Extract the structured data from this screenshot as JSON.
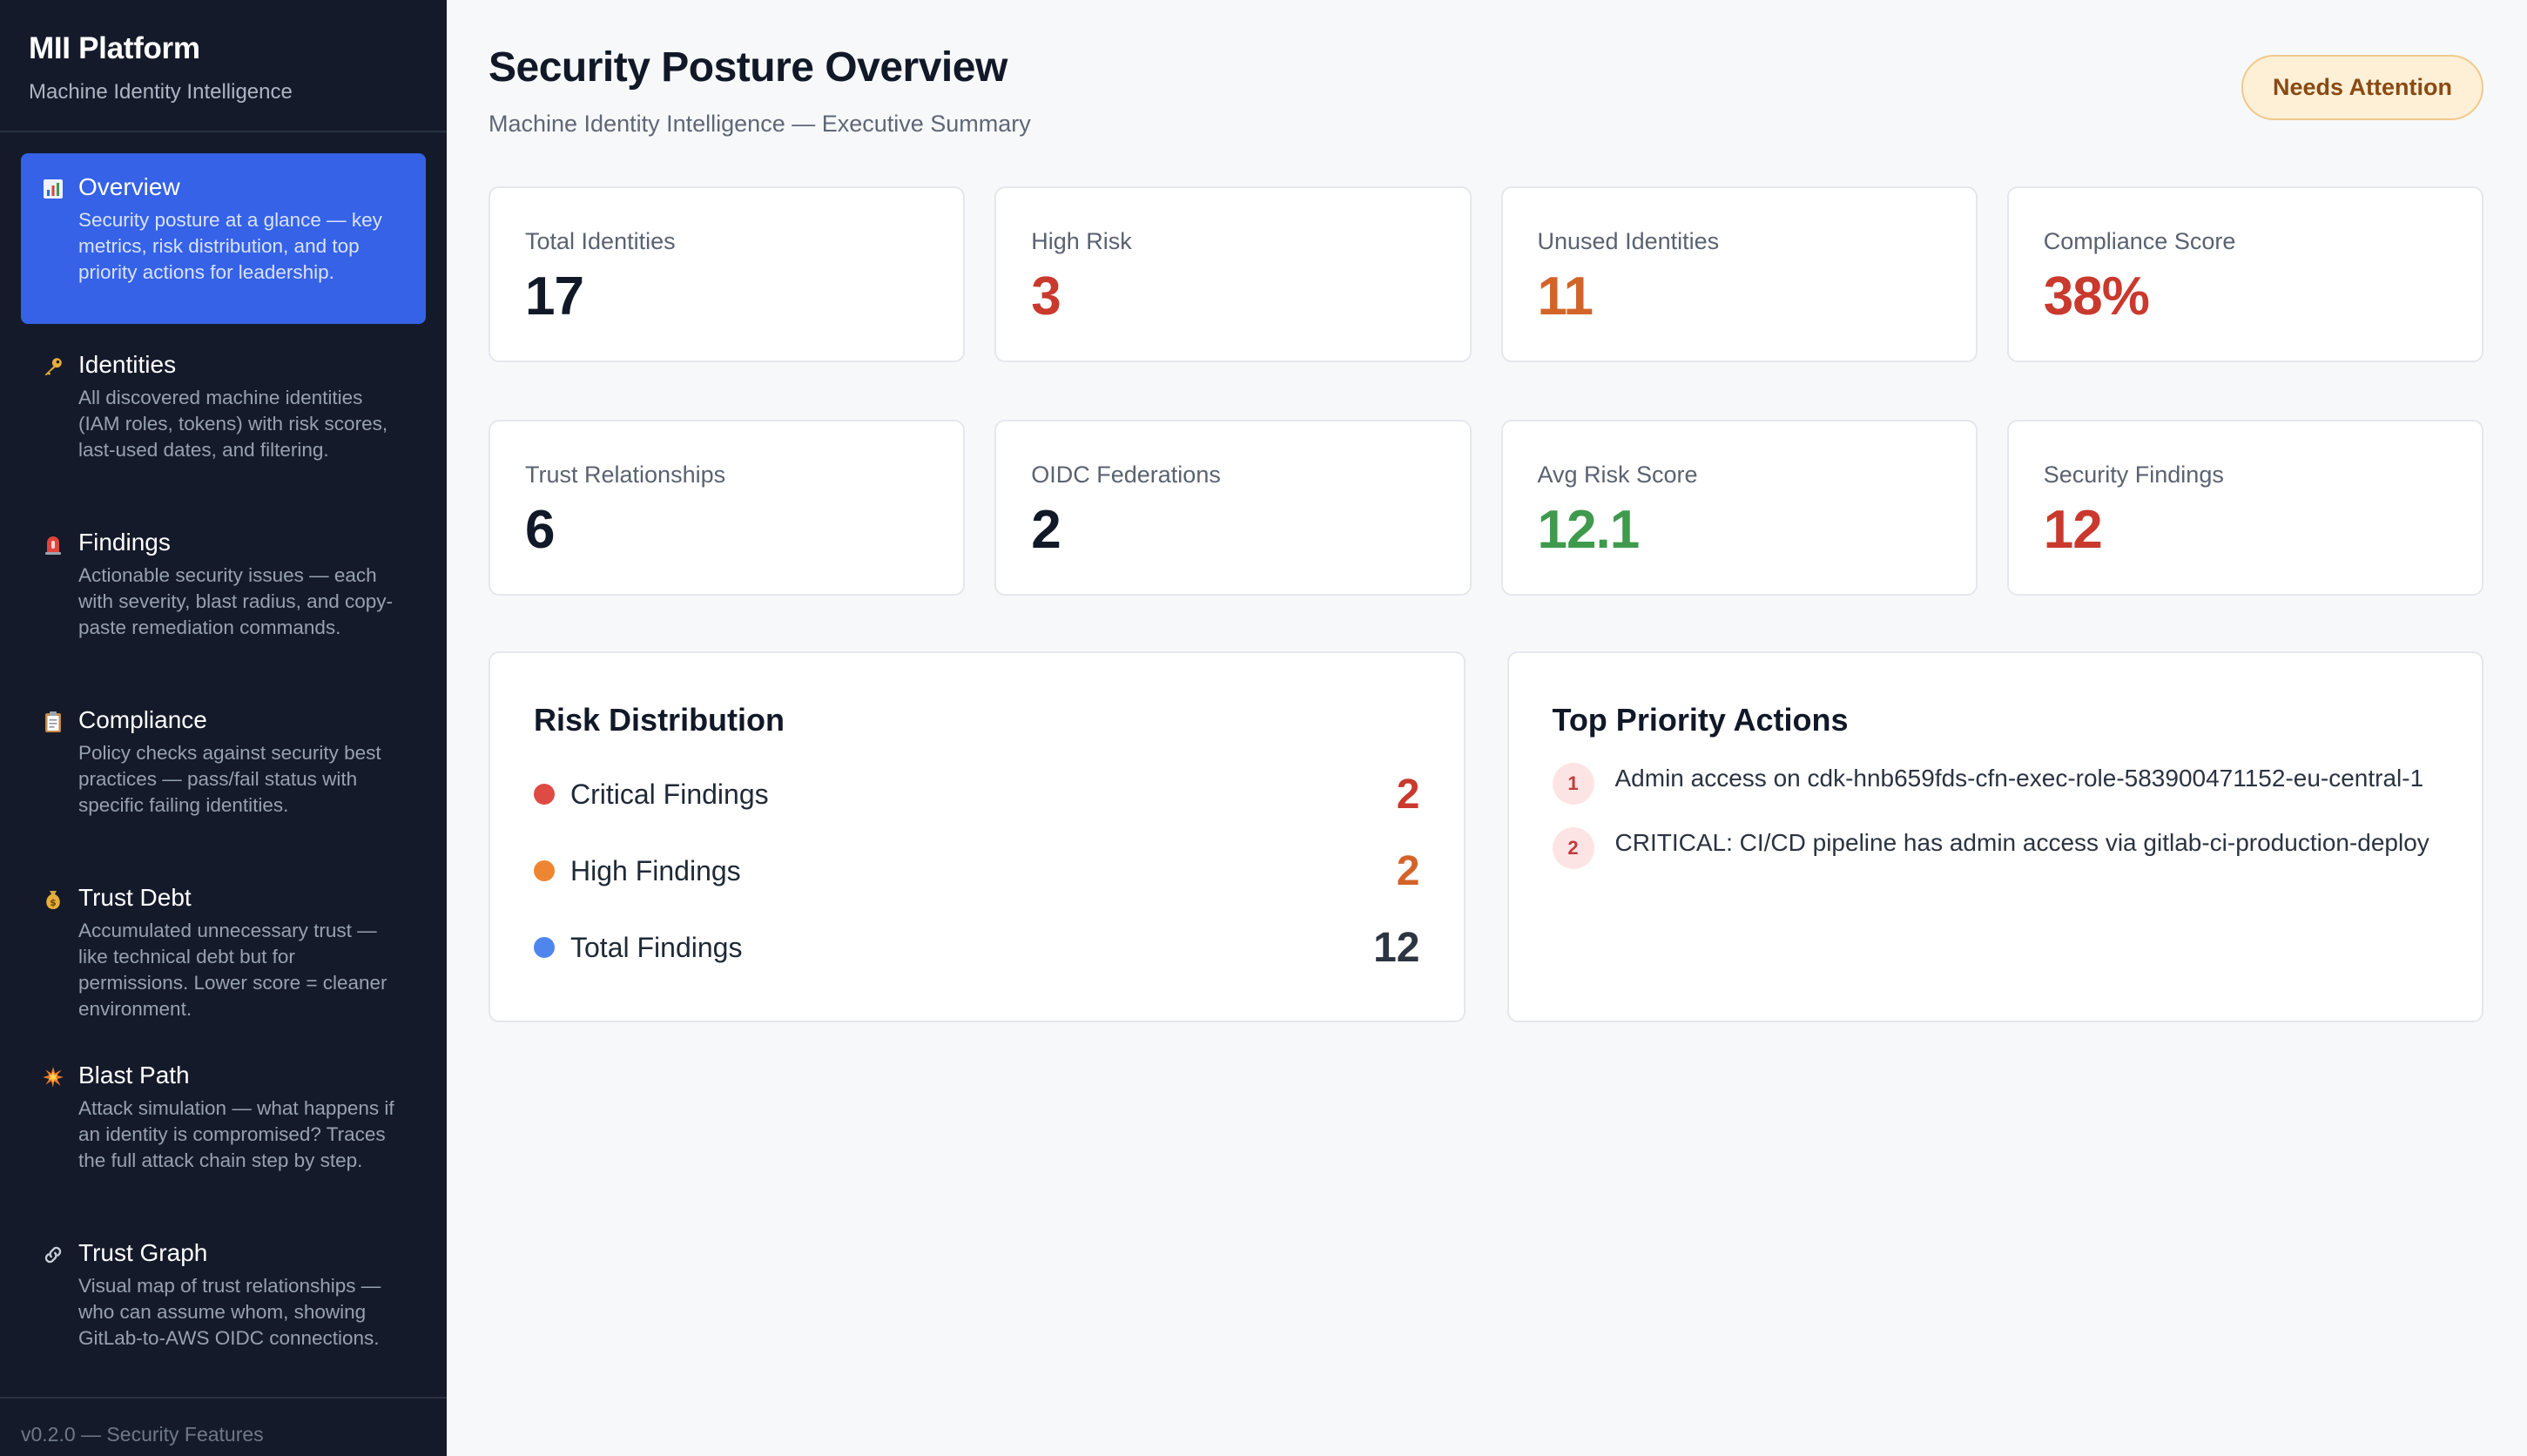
{
  "sidebar": {
    "title": "MII Platform",
    "subtitle": "Machine Identity Intelligence",
    "items": [
      {
        "label": "Overview",
        "icon": "bar-chart-icon",
        "desc": "Security posture at a glance — key metrics, risk distribution, and top priority actions for leadership.",
        "active": true
      },
      {
        "label": "Identities",
        "icon": "key-icon",
        "desc": "All discovered machine identities (IAM roles, tokens) with risk scores, last-used dates, and filtering."
      },
      {
        "label": "Findings",
        "icon": "siren-icon",
        "desc": "Actionable security issues — each with severity, blast radius, and copy-paste remediation commands."
      },
      {
        "label": "Compliance",
        "icon": "clipboard-icon",
        "desc": "Policy checks against security best practices — pass/fail status with specific failing identities."
      },
      {
        "label": "Trust Debt",
        "icon": "money-bag-icon",
        "desc": "Accumulated unnecessary trust — like technical debt but for permissions. Lower score = cleaner environment."
      },
      {
        "label": "Blast Path",
        "icon": "explosion-icon",
        "desc": "Attack simulation — what happens if an identity is compromised? Traces the full attack chain step by step."
      },
      {
        "label": "Trust Graph",
        "icon": "link-icon",
        "desc": "Visual map of trust relationships — who can assume whom, showing GitLab-to-AWS OIDC connections."
      }
    ],
    "version": "v0.2.0 — Security Features"
  },
  "header": {
    "title": "Security Posture Overview",
    "subtitle": "Machine Identity Intelligence — Executive Summary",
    "status": "Needs Attention"
  },
  "metrics_row1": [
    {
      "label": "Total Identities",
      "value": "17",
      "color": "#111827"
    },
    {
      "label": "High Risk",
      "value": "3",
      "color": "#c9392e"
    },
    {
      "label": "Unused Identities",
      "value": "11",
      "color": "#d2642a"
    },
    {
      "label": "Compliance Score",
      "value": "38%",
      "color": "#c9392e"
    }
  ],
  "metrics_row2": [
    {
      "label": "Trust Relationships",
      "value": "6",
      "color": "#111827"
    },
    {
      "label": "OIDC Federations",
      "value": "2",
      "color": "#111827"
    },
    {
      "label": "Avg Risk Score",
      "value": "12.1",
      "color": "#3f9a4d"
    },
    {
      "label": "Security Findings",
      "value": "12",
      "color": "#c9392e"
    }
  ],
  "risk_distribution": {
    "title": "Risk Distribution",
    "rows": [
      {
        "label": "Critical Findings",
        "value": "2",
        "dot": "#dd4b44",
        "color": "#c9392e"
      },
      {
        "label": "High Findings",
        "value": "2",
        "dot": "#ee8533",
        "color": "#d2642a"
      },
      {
        "label": "Total Findings",
        "value": "12",
        "dot": "#4f86ee",
        "color": "#2d3441"
      }
    ]
  },
  "priority_actions": {
    "title": "Top Priority Actions",
    "items": [
      {
        "num": "1",
        "text": "Admin access on cdk-hnb659fds-cfn-exec-role-583900471152-eu-central-1"
      },
      {
        "num": "2",
        "text": "CRITICAL: CI/CD pipeline has admin access via gitlab-ci-production-deploy"
      }
    ]
  }
}
